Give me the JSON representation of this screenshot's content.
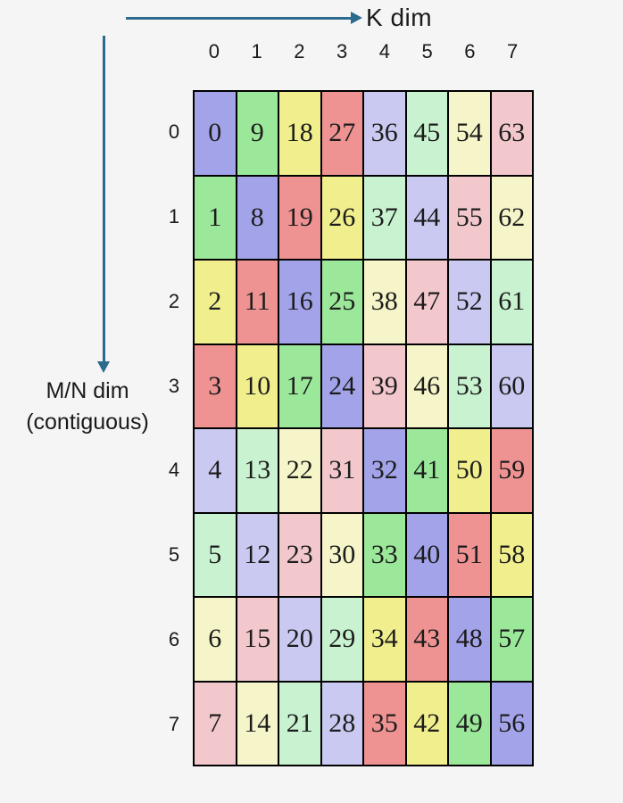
{
  "background": "#f5f5f6",
  "text_color": "#1a1a1a",
  "arrows": {
    "color": "#2b6b8e",
    "k_dim_label": "K dim",
    "mn_dim_label_line1": "M/N dim",
    "mn_dim_label_line2": "(contiguous)"
  },
  "palette": {
    "B": "#a3a3ea",
    "G": "#9be89b",
    "Y": "#f0ee8d",
    "R": "#ee9292",
    "b": "#c9c9f1",
    "g": "#c9f3d0",
    "y": "#f5f5c9",
    "r": "#f3c8cd"
  },
  "grid": {
    "col_headers": [
      "0",
      "1",
      "2",
      "3",
      "4",
      "5",
      "6",
      "7"
    ],
    "row_headers": [
      "0",
      "1",
      "2",
      "3",
      "4",
      "5",
      "6",
      "7"
    ],
    "rows": [
      {
        "values": [
          "0",
          "9",
          "18",
          "27",
          "36",
          "45",
          "54",
          "63"
        ],
        "colors": [
          "B",
          "G",
          "Y",
          "R",
          "b",
          "g",
          "y",
          "r"
        ]
      },
      {
        "values": [
          "1",
          "8",
          "19",
          "26",
          "37",
          "44",
          "55",
          "62"
        ],
        "colors": [
          "G",
          "B",
          "R",
          "Y",
          "g",
          "b",
          "r",
          "y"
        ]
      },
      {
        "values": [
          "2",
          "11",
          "16",
          "25",
          "38",
          "47",
          "52",
          "61"
        ],
        "colors": [
          "Y",
          "R",
          "B",
          "G",
          "y",
          "r",
          "b",
          "g"
        ]
      },
      {
        "values": [
          "3",
          "10",
          "17",
          "24",
          "39",
          "46",
          "53",
          "60"
        ],
        "colors": [
          "R",
          "Y",
          "G",
          "B",
          "r",
          "y",
          "g",
          "b"
        ]
      },
      {
        "values": [
          "4",
          "13",
          "22",
          "31",
          "32",
          "41",
          "50",
          "59"
        ],
        "colors": [
          "b",
          "g",
          "y",
          "r",
          "B",
          "G",
          "Y",
          "R"
        ]
      },
      {
        "values": [
          "5",
          "12",
          "23",
          "30",
          "33",
          "40",
          "51",
          "58"
        ],
        "colors": [
          "g",
          "b",
          "r",
          "y",
          "G",
          "B",
          "R",
          "Y"
        ]
      },
      {
        "values": [
          "6",
          "15",
          "20",
          "29",
          "34",
          "43",
          "48",
          "57"
        ],
        "colors": [
          "y",
          "r",
          "b",
          "g",
          "Y",
          "R",
          "B",
          "G"
        ]
      },
      {
        "values": [
          "7",
          "14",
          "21",
          "28",
          "35",
          "42",
          "49",
          "56"
        ],
        "colors": [
          "r",
          "y",
          "g",
          "b",
          "R",
          "Y",
          "G",
          "B"
        ]
      }
    ]
  }
}
